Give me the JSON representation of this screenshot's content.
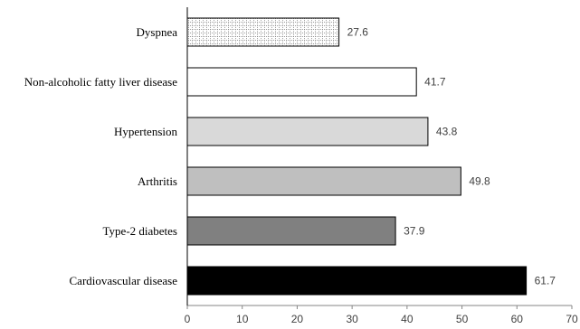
{
  "chart_data": {
    "type": "bar",
    "horizontal": true,
    "categories": [
      "Dyspnea",
      "Non-alcoholic fatty liver disease",
      "Hypertension",
      "Arthritis",
      "Type-2 diabetes",
      "Cardiovascular disease"
    ],
    "values": [
      27.6,
      41.7,
      43.8,
      49.8,
      37.9,
      61.7
    ],
    "bar_fills": [
      "#ffffff",
      "#ffffff",
      "#d9d9d9",
      "#bfbfbf",
      "#808080",
      "#000000"
    ],
    "bar_hatch": [
      true,
      false,
      false,
      false,
      false,
      false
    ],
    "hatch_color": "#7a7a7a",
    "bar_stroke": "#000000",
    "y_axis_color": "#000000",
    "x_axis_color": "#868686",
    "xlim": [
      0,
      70
    ],
    "x_ticks": [
      0,
      10,
      20,
      30,
      40,
      50,
      60,
      70
    ],
    "grid": false,
    "data_labels": true
  }
}
